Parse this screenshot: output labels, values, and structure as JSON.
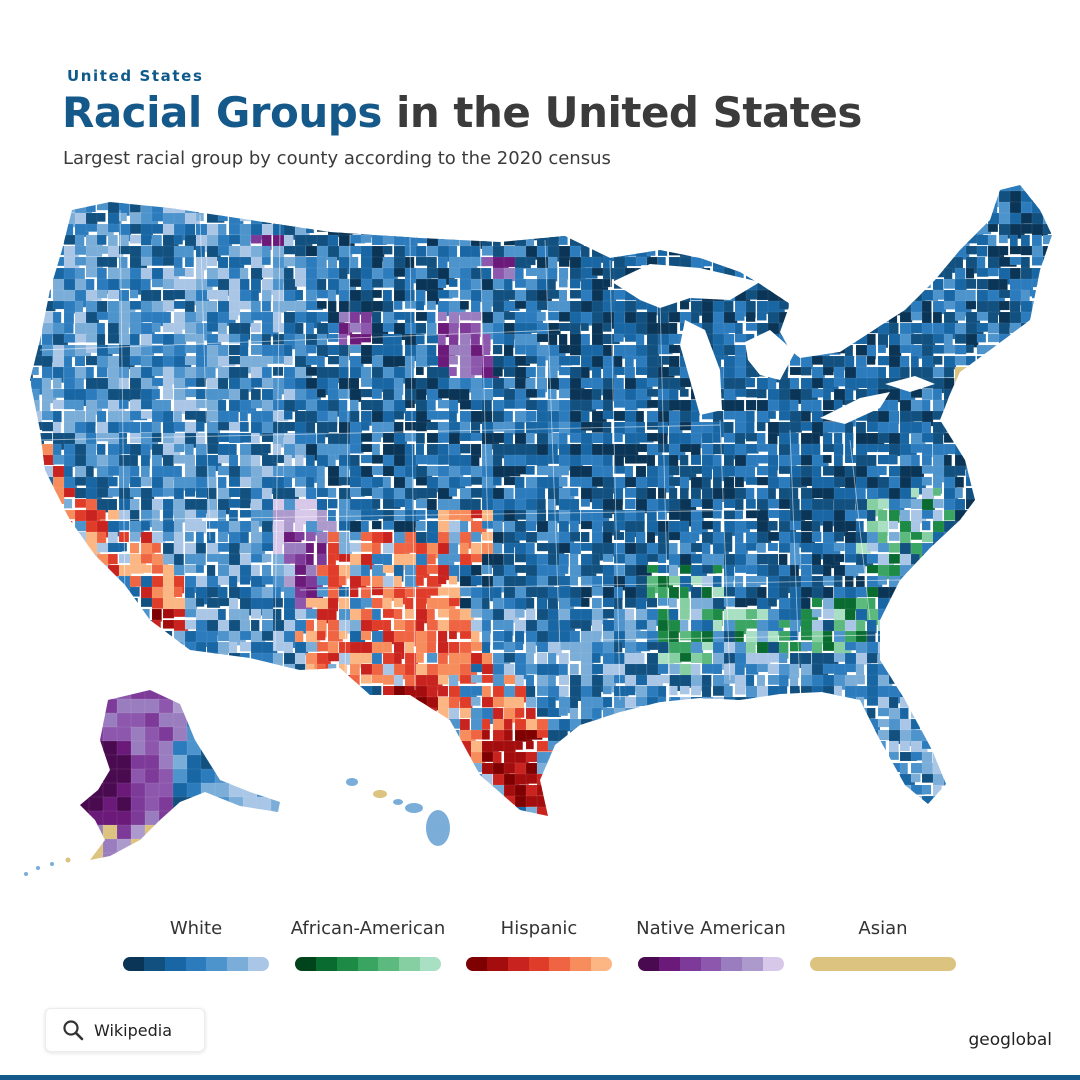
{
  "header": {
    "eyebrow": "United States",
    "title_accent": "Racial Groups",
    "title_rest": " in the United States",
    "subtitle": "Largest racial group by county according to the 2020 census"
  },
  "map": {
    "regions": [
      "contiguous-us",
      "alaska",
      "hawaii"
    ],
    "category_colors": {
      "White": [
        "#0b3557",
        "#11507f",
        "#1866a3",
        "#2b7bbd",
        "#4d93cc",
        "#7aaed9",
        "#a9c6e6"
      ],
      "African-American": [
        "#00441b",
        "#0a6b30",
        "#1d8a45",
        "#3aa462",
        "#5dba7f",
        "#85cfa2",
        "#a9dfc3"
      ],
      "Hispanic": [
        "#7f0000",
        "#a30d0d",
        "#c8231e",
        "#e03c2a",
        "#ef6544",
        "#f78c5c",
        "#fbb683"
      ],
      "Native American": [
        "#4a0a4f",
        "#6b1a7a",
        "#7e3a98",
        "#8d57ad",
        "#9a7dbf",
        "#ad9acd",
        "#d7c8ea"
      ],
      "Asian": [
        "#dcc380",
        "#dcc380",
        "#dcc380",
        "#dcc380",
        "#dcc380",
        "#dcc380",
        "#dcc380"
      ]
    }
  },
  "legend": [
    {
      "label": "White",
      "colors": [
        "#0b3557",
        "#11507f",
        "#1866a3",
        "#2b7bbd",
        "#4d93cc",
        "#7aaed9",
        "#a9c6e6"
      ]
    },
    {
      "label": "African-American",
      "colors": [
        "#00441b",
        "#0a6b30",
        "#1d8a45",
        "#3aa462",
        "#5dba7f",
        "#85cfa2",
        "#a9dfc3"
      ]
    },
    {
      "label": "Hispanic",
      "colors": [
        "#7f0000",
        "#a30d0d",
        "#c8231e",
        "#e03c2a",
        "#ef6544",
        "#f78c5c",
        "#fbb683"
      ]
    },
    {
      "label": "Native American",
      "colors": [
        "#4a0a4f",
        "#6b1a7a",
        "#7e3a98",
        "#8d57ad",
        "#9a7dbf",
        "#ad9acd",
        "#d7c8ea"
      ]
    },
    {
      "label": "Asian",
      "colors": [
        "#dcc380"
      ]
    }
  ],
  "footer": {
    "source_icon": "search-icon",
    "source": "Wikipedia",
    "brand": "geoglobal"
  }
}
